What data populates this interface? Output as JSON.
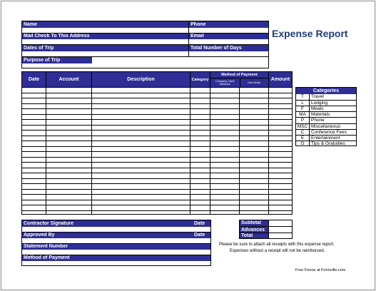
{
  "title": "Expense Report",
  "header_fields": {
    "name": "Name",
    "phone": "Phone",
    "mail_check": "Mail Check To This Address",
    "email": "Email",
    "dates_of_trip": "Dates of Trip",
    "total_days": "Total Number of Days",
    "purpose": "Purpose of Trip"
  },
  "table": {
    "columns": {
      "date": "Date",
      "account": "Account",
      "description": "Description",
      "category": "Category",
      "method_of_payment": "Method of Payment",
      "company_card": "Company Card/ Advance",
      "own_funds": "Own funds",
      "amount": "Amount"
    },
    "row_count": 24
  },
  "categories": {
    "title": "Categories",
    "items": [
      {
        "code": "T",
        "name": "Travel"
      },
      {
        "code": "L",
        "name": "Lodging"
      },
      {
        "code": "F",
        "name": "Meals"
      },
      {
        "code": "MA",
        "name": "Materials"
      },
      {
        "code": "P",
        "name": "Phone"
      },
      {
        "code": "MSC",
        "name": "Miscellaneous"
      },
      {
        "code": "C",
        "name": "Conference Fees"
      },
      {
        "code": "E",
        "name": "Entertainment"
      },
      {
        "code": "G",
        "name": "Tips & Gratuities"
      }
    ]
  },
  "bottom": {
    "contractor_signature": "Contractor Signature",
    "date1": "Date",
    "approved_by": "Approved By",
    "date2": "Date",
    "statement_number": "Statement Number",
    "method_of_payment": "Method of Payment"
  },
  "totals": {
    "subtotal": "Subtotal",
    "advances": "Advances",
    "total": "Total"
  },
  "notes": {
    "line1": "Please be sure to attach all receipts with this expense report.",
    "line2": "Expenses without a receipt will not be reimbursed."
  },
  "footer": "Free Forms at Formville.com",
  "colors": {
    "header_blue": "#2e2e94",
    "title_blue": "#1f3e78"
  }
}
